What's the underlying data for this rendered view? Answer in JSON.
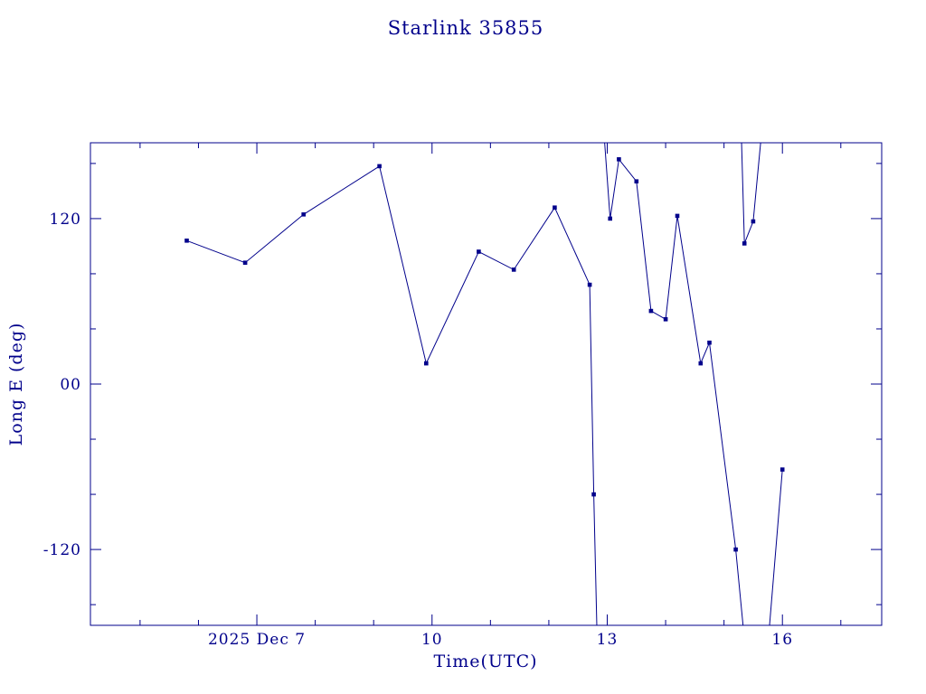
{
  "chart_data": {
    "type": "line",
    "title": "Starlink 35855",
    "xlabel": "Time(UTC)",
    "ylabel": "Long E (deg)",
    "legend": "none",
    "grid": false,
    "x_axis": {
      "unit": "day of month, Dec 2025",
      "range": [
        4.15,
        17.7
      ],
      "major_ticks": [
        {
          "value": 7,
          "label": "2025 Dec 7"
        },
        {
          "value": 10,
          "label": "10"
        },
        {
          "value": 13,
          "label": "13"
        },
        {
          "value": 16,
          "label": "16"
        }
      ],
      "minor_tick_values": [
        5,
        6,
        8,
        9,
        11,
        12,
        14,
        15,
        17
      ]
    },
    "y_axis": {
      "unit": "degrees east longitude",
      "range": [
        -175,
        175
      ],
      "major_ticks": [
        {
          "value": 120,
          "label": "120"
        },
        {
          "value": 0,
          "label": "00"
        },
        {
          "value": -120,
          "label": "-120"
        }
      ],
      "minor_tick_values": [
        -160,
        -80,
        -40,
        40,
        80,
        160
      ]
    },
    "series": [
      {
        "name": "Long E (deg)",
        "marker": "filled-square",
        "color": "#00008B",
        "points": [
          [
            5.8,
            104
          ],
          [
            6.8,
            88
          ],
          [
            7.8,
            123
          ],
          [
            9.1,
            158
          ],
          [
            9.9,
            15
          ],
          [
            10.8,
            96
          ],
          [
            11.4,
            83
          ],
          [
            12.1,
            128
          ],
          [
            12.7,
            72
          ],
          [
            12.77,
            -80
          ],
          [
            13.05,
            120
          ],
          [
            13.2,
            163
          ],
          [
            13.5,
            147
          ],
          [
            13.75,
            53
          ],
          [
            14.0,
            47
          ],
          [
            14.2,
            122
          ],
          [
            14.6,
            15
          ],
          [
            14.75,
            30
          ],
          [
            15.2,
            -120
          ],
          [
            15.35,
            102
          ],
          [
            15.5,
            118
          ],
          [
            16.0,
            -62
          ]
        ],
        "wrap_segments": [
          [
            [
              5.8,
              104
            ],
            [
              6.8,
              88
            ],
            [
              7.8,
              123
            ],
            [
              9.1,
              158
            ],
            [
              9.9,
              15
            ],
            [
              10.8,
              96
            ],
            [
              11.4,
              83
            ],
            [
              12.1,
              128
            ],
            [
              12.7,
              72
            ],
            [
              12.77,
              -80
            ],
            [
              12.83,
              -190
            ]
          ],
          [
            [
              12.93,
              190
            ],
            [
              13.05,
              120
            ],
            [
              13.2,
              163
            ],
            [
              13.5,
              147
            ],
            [
              13.75,
              53
            ],
            [
              14.0,
              47
            ],
            [
              14.2,
              122
            ],
            [
              14.6,
              15
            ],
            [
              14.75,
              30
            ],
            [
              15.2,
              -120
            ],
            [
              15.36,
              -190
            ]
          ],
          [
            [
              15.29,
              190
            ],
            [
              15.35,
              102
            ],
            [
              15.5,
              118
            ],
            [
              15.66,
              190
            ]
          ],
          [
            [
              15.75,
              -190
            ],
            [
              16.0,
              -62
            ]
          ]
        ]
      }
    ],
    "styles": {
      "axis_color": "#00008B",
      "background": "#FFFFFF",
      "major_tick_len": 12,
      "minor_tick_len": 6
    }
  }
}
